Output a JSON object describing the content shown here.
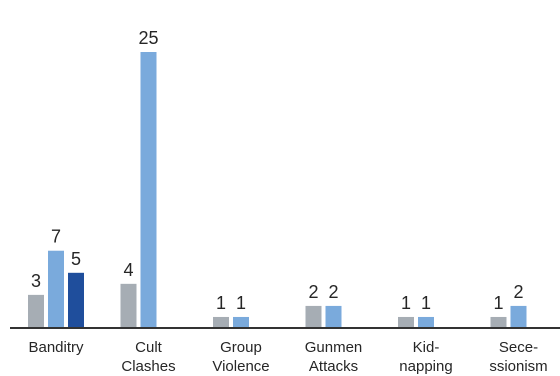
{
  "chart_data": {
    "type": "bar",
    "categories": [
      [
        "Banditry"
      ],
      [
        "Cult",
        "Clashes"
      ],
      [
        "Group",
        "Violence"
      ],
      [
        "Gunmen",
        "Attacks"
      ],
      [
        "Kid-",
        "napping"
      ],
      [
        "Sece-",
        "ssionism"
      ]
    ],
    "series": [
      {
        "color": "#a6adb4",
        "values": [
          3,
          4,
          1,
          2,
          1,
          1
        ]
      },
      {
        "color": "#7aaadc",
        "values": [
          7,
          25,
          1,
          2,
          1,
          2
        ]
      },
      {
        "color": "#1f4e9c",
        "values": [
          5,
          null,
          null,
          null,
          null,
          null
        ]
      }
    ],
    "ylim": [
      0,
      25
    ],
    "grid": false,
    "axis_color": "#333333"
  }
}
